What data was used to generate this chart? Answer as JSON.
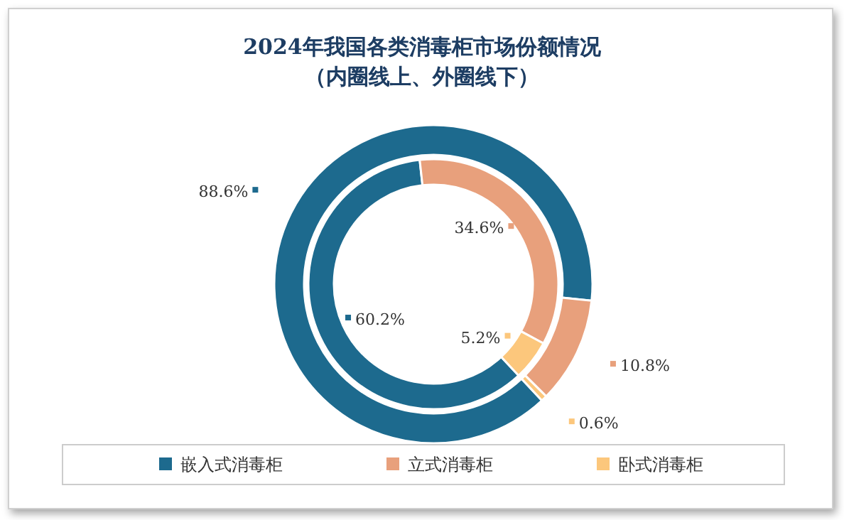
{
  "chart_data": {
    "type": "donut",
    "title": "2024年我国各类消毒柜市场份额情况",
    "subtitle": "（内圈线上、外圈线下）",
    "categories": [
      "嵌入式消毒柜",
      "立式消毒柜",
      "卧式消毒柜"
    ],
    "colors": [
      "#1d6a8e",
      "#e8a07c",
      "#fcc77c"
    ],
    "series": [
      {
        "values": [
          60.2,
          34.6,
          5.2
        ],
        "value_labels": [
          "60.2%",
          "34.6%",
          "5.2%"
        ]
      },
      {
        "values": [
          88.6,
          10.8,
          0.6
        ],
        "value_labels": [
          "88.6%",
          "10.8%",
          "0.6%"
        ]
      }
    ],
    "legend": "bottom"
  }
}
